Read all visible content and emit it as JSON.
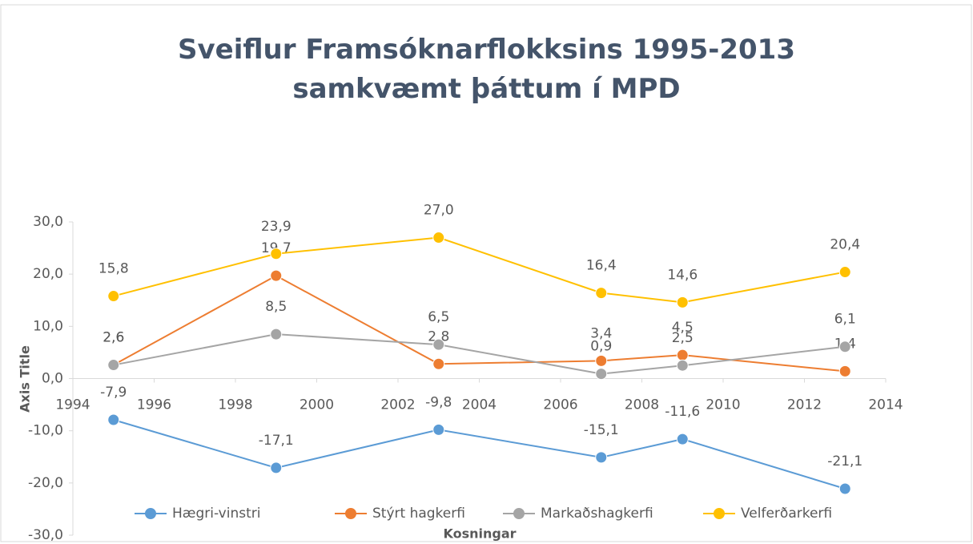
{
  "chart_data": {
    "type": "line",
    "title": "Sveiflur Framsóknarflokksins 1995-2013 samkvæmt þáttum í MPD",
    "x_label": "Kosningar",
    "y_label": "Axis Title",
    "x": [
      1995,
      1999,
      2003,
      2007,
      2009,
      2013
    ],
    "series": [
      {
        "name": "Hægri-vinstri",
        "color": "#5b9bd5",
        "values": [
          -7.9,
          -17.1,
          -9.8,
          -15.1,
          -11.6,
          -21.1
        ],
        "value_labels": [
          "-7,9",
          "-17,1",
          "-9,8",
          "-15,1",
          "-11,6",
          "-21,1"
        ]
      },
      {
        "name": "Stýrt hagkerfi",
        "color": "#ed7d31",
        "values": [
          2.6,
          19.7,
          2.8,
          3.4,
          4.5,
          1.4
        ],
        "value_labels": [
          "2,6",
          "19,7",
          "2,8",
          "3,4",
          "4,5",
          "1,4"
        ]
      },
      {
        "name": "Markaðshagkerfi",
        "color": "#a5a5a5",
        "values": [
          2.6,
          8.5,
          6.5,
          0.9,
          2.5,
          6.1
        ],
        "value_labels": [
          "2,6",
          "8,5",
          "6,5",
          "0,9",
          "2,5",
          "6,1"
        ]
      },
      {
        "name": "Velferðarkerfi",
        "color": "#ffc000",
        "values": [
          15.8,
          23.9,
          27.0,
          16.4,
          14.6,
          20.4
        ],
        "value_labels": [
          "15,8",
          "23,9",
          "27,0",
          "16,4",
          "14,6",
          "20,4"
        ]
      }
    ],
    "xlim": [
      1994,
      2014
    ],
    "xticks": [
      1994,
      1996,
      1998,
      2000,
      2002,
      2004,
      2006,
      2008,
      2010,
      2012,
      2014
    ],
    "ylim": [
      -30,
      30
    ],
    "yticks": [
      {
        "value": -30,
        "label": "-30,0"
      },
      {
        "value": -20,
        "label": "-20,0"
      },
      {
        "value": -10,
        "label": "-10,0"
      },
      {
        "value": 0,
        "label": "0,0"
      },
      {
        "value": 10,
        "label": "10,0"
      },
      {
        "value": 20,
        "label": "20,0"
      },
      {
        "value": 30,
        "label": "30,0"
      }
    ],
    "grid": false,
    "legend": "bottom"
  }
}
